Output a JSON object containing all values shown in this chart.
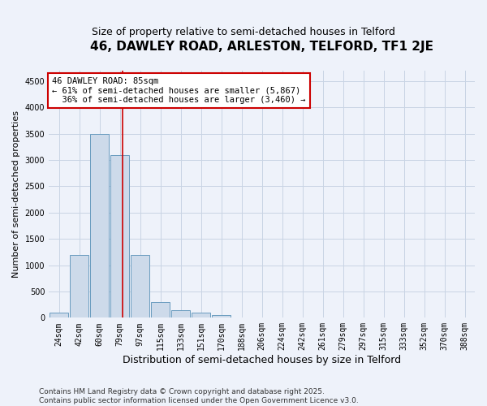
{
  "title1": "46, DAWLEY ROAD, ARLESTON, TELFORD, TF1 2JE",
  "title2": "Size of property relative to semi-detached houses in Telford",
  "xlabel": "Distribution of semi-detached houses by size in Telford",
  "ylabel": "Number of semi-detached properties",
  "categories": [
    "24sqm",
    "42sqm",
    "60sqm",
    "79sqm",
    "97sqm",
    "115sqm",
    "133sqm",
    "151sqm",
    "170sqm",
    "188sqm",
    "206sqm",
    "224sqm",
    "242sqm",
    "261sqm",
    "279sqm",
    "297sqm",
    "315sqm",
    "333sqm",
    "352sqm",
    "370sqm",
    "388sqm"
  ],
  "values": [
    100,
    1200,
    3500,
    3100,
    1200,
    300,
    150,
    100,
    50,
    10,
    5,
    2,
    1,
    0,
    0,
    0,
    0,
    0,
    0,
    0,
    0
  ],
  "bar_color": "#cddaea",
  "bar_edge_color": "#6a9cbf",
  "vline_color": "#cc0000",
  "vline_x_index": 3.15,
  "annotation_text": "46 DAWLEY ROAD: 85sqm\n← 61% of semi-detached houses are smaller (5,867)\n  36% of semi-detached houses are larger (3,460) →",
  "annotation_box_color": "#cc0000",
  "ylim": [
    0,
    4700
  ],
  "yticks": [
    0,
    500,
    1000,
    1500,
    2000,
    2500,
    3000,
    3500,
    4000,
    4500
  ],
  "grid_color": "#c8d4e4",
  "background_color": "#eef2fa",
  "footer": "Contains HM Land Registry data © Crown copyright and database right 2025.\nContains public sector information licensed under the Open Government Licence v3.0.",
  "title1_fontsize": 11,
  "title2_fontsize": 9,
  "xlabel_fontsize": 9,
  "ylabel_fontsize": 8,
  "tick_fontsize": 7,
  "annot_fontsize": 7.5,
  "footer_fontsize": 6.5
}
